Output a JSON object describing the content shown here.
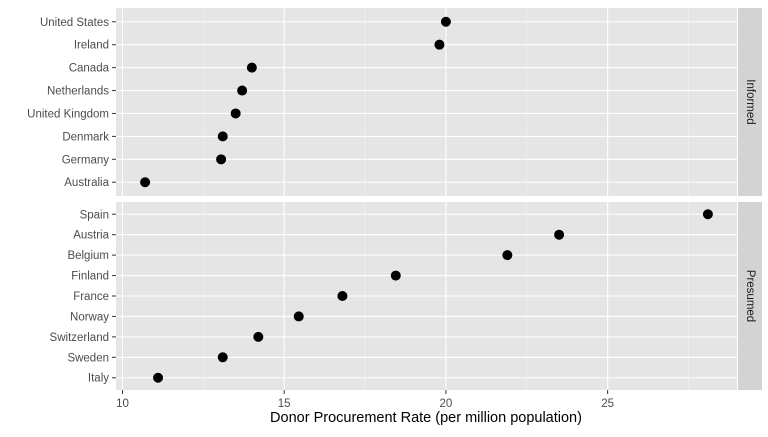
{
  "chart_data": {
    "type": "scatter",
    "title": "",
    "xlabel": "Donor Procurement Rate (per million population)",
    "ylabel": "",
    "xlim": [
      9.8,
      29.0
    ],
    "x_ticks": [
      10,
      15,
      20,
      25
    ],
    "grid": true,
    "legend": "none",
    "point_color": "#000000",
    "panel_color": "#e5e5e5",
    "strip_color": "#d3d3d3",
    "panels": [
      {
        "name": "Informed",
        "categories": [
          "United States",
          "Ireland",
          "Canada",
          "Netherlands",
          "United Kingdom",
          "Denmark",
          "Germany",
          "Australia"
        ],
        "values": [
          20.0,
          19.8,
          14.0,
          13.7,
          13.5,
          13.1,
          13.05,
          10.7
        ]
      },
      {
        "name": "Presumed",
        "categories": [
          "Spain",
          "Austria",
          "Belgium",
          "Finland",
          "France",
          "Norway",
          "Switzerland",
          "Sweden",
          "Italy"
        ],
        "values": [
          28.1,
          23.5,
          21.9,
          18.45,
          16.8,
          15.45,
          14.2,
          13.1,
          11.1
        ]
      }
    ]
  }
}
